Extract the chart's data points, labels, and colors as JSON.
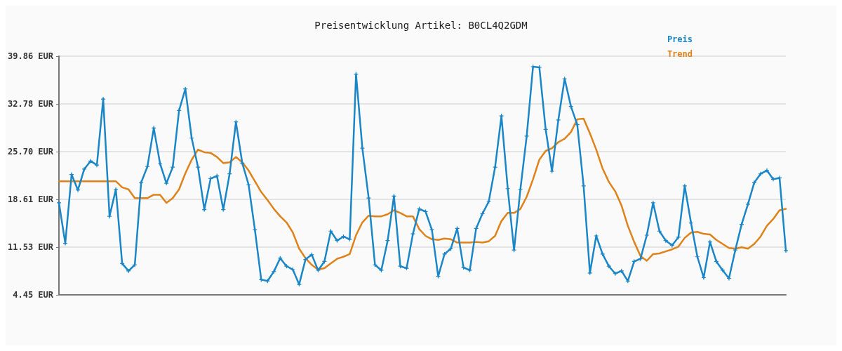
{
  "chart_data": {
    "type": "line",
    "title": "Preisentwicklung Artikel: B0CL4Q2GDM",
    "categories": [
      null,
      null,
      null,
      null,
      null,
      null,
      null,
      null,
      null,
      null,
      null,
      null,
      null,
      null,
      null,
      null,
      null,
      null,
      null,
      null,
      null,
      null,
      null,
      null,
      null,
      null,
      null,
      null,
      null,
      null,
      null,
      null,
      null,
      null,
      null,
      null,
      null,
      null,
      null,
      null,
      null,
      null,
      null,
      null,
      null,
      null,
      null,
      null,
      null,
      null,
      null,
      null,
      null,
      null,
      null,
      null,
      null,
      null,
      null,
      null,
      null,
      null,
      null,
      null,
      null,
      null,
      null,
      null,
      null,
      null,
      null,
      null,
      null,
      null,
      null,
      null,
      null,
      null,
      null,
      null,
      null,
      null,
      null,
      null,
      null,
      null,
      null,
      null,
      null,
      null,
      null,
      null,
      null,
      null,
      null,
      null,
      null,
      null,
      null,
      null,
      null,
      null,
      null,
      null,
      null,
      null,
      null,
      null,
      null,
      null,
      null,
      null,
      null,
      null,
      null,
      null
    ],
    "series": [
      {
        "name": "Preis",
        "color": "#1a86c8",
        "marker": "cross",
        "values": [
          18.1,
          12.1,
          22.3,
          20.0,
          23.1,
          24.3,
          23.7,
          33.5,
          16.1,
          20.1,
          9.1,
          8.0,
          8.9,
          21.1,
          23.5,
          29.2,
          23.9,
          21.0,
          23.4,
          31.8,
          35.0,
          27.7,
          23.4,
          17.1,
          21.7,
          22.1,
          17.1,
          22.4,
          30.1,
          24.0,
          20.8,
          14.1,
          6.7,
          6.5,
          7.9,
          9.9,
          8.7,
          8.2,
          6.0,
          9.7,
          10.4,
          8.1,
          9.4,
          13.9,
          12.5,
          13.1,
          12.7,
          37.2,
          26.2,
          18.8,
          8.9,
          8.1,
          12.5,
          19.1,
          8.7,
          8.4,
          13.5,
          17.2,
          16.8,
          14.1,
          7.2,
          10.5,
          11.3,
          14.3,
          8.5,
          8.1,
          14.3,
          16.5,
          18.3,
          23.4,
          31.0,
          20.2,
          11.1,
          20.1,
          28.0,
          38.3,
          38.2,
          29.0,
          22.8,
          30.4,
          36.5,
          32.4,
          29.7,
          20.6,
          7.7,
          13.2,
          10.5,
          8.7,
          7.6,
          8.0,
          6.5,
          9.4,
          9.8,
          13.3,
          18.1,
          13.9,
          12.5,
          11.8,
          13.0,
          20.6,
          15.1,
          10.1,
          7.0,
          12.3,
          9.4,
          8.1,
          6.9,
          11.1,
          14.9,
          17.9,
          21.1,
          22.4,
          22.9,
          21.6,
          21.8,
          11.0
        ]
      },
      {
        "name": "Trend",
        "color": "#e0821a",
        "marker": "none",
        "values": [
          21.3,
          21.3,
          21.3,
          21.3,
          21.3,
          21.3,
          21.3,
          21.3,
          21.3,
          21.3,
          20.4,
          20.1,
          18.8,
          18.8,
          18.8,
          19.3,
          19.3,
          18.1,
          18.8,
          20.1,
          22.5,
          24.5,
          26.0,
          25.6,
          25.5,
          24.9,
          24.0,
          24.1,
          24.9,
          24.1,
          22.9,
          21.3,
          19.7,
          18.5,
          17.2,
          16.1,
          15.2,
          13.7,
          11.3,
          9.9,
          8.9,
          8.2,
          8.4,
          9.1,
          9.8,
          10.1,
          10.5,
          13.3,
          15.2,
          16.2,
          16.1,
          16.1,
          16.4,
          17.0,
          16.6,
          16.1,
          16.1,
          14.2,
          13.2,
          12.7,
          12.6,
          12.8,
          12.7,
          12.2,
          12.2,
          12.2,
          12.3,
          12.2,
          12.4,
          13.2,
          15.4,
          16.6,
          16.6,
          17.2,
          19.0,
          21.6,
          24.5,
          25.8,
          26.2,
          27.1,
          27.6,
          28.6,
          30.5,
          30.6,
          28.4,
          26.0,
          23.2,
          21.2,
          19.8,
          17.7,
          14.7,
          12.3,
          10.2,
          9.5,
          10.5,
          10.6,
          10.9,
          11.2,
          11.6,
          12.9,
          13.7,
          13.8,
          13.5,
          13.4,
          12.6,
          12.0,
          11.4,
          11.3,
          11.5,
          11.3,
          12.0,
          13.1,
          14.7,
          15.7,
          17.0,
          17.2
        ]
      }
    ],
    "ylim": [
      4.45,
      39.86
    ],
    "yticks": [
      {
        "value": 4.45,
        "label": "4.45 EUR"
      },
      {
        "value": 11.53,
        "label": "11.53 EUR"
      },
      {
        "value": 18.61,
        "label": "18.61 EUR"
      },
      {
        "value": 25.7,
        "label": "25.70 EUR"
      },
      {
        "value": 32.78,
        "label": "32.78 EUR"
      },
      {
        "value": 39.86,
        "label": "39.86 EUR"
      }
    ],
    "grid": "y",
    "legend": "top right",
    "line_style": "solid",
    "tick_labels": "y"
  }
}
